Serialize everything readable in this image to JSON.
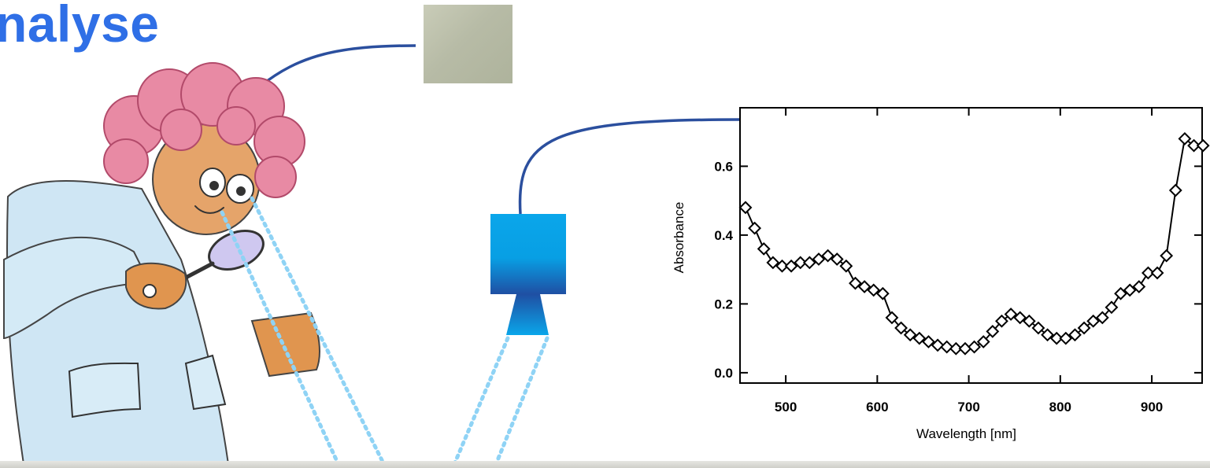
{
  "title": "nalyse",
  "colors": {
    "title": "#2f6fe6",
    "connector": "#2b4f9e",
    "camera_body_top": "#0aa6ea",
    "camera_body_bottom": "#1f4fa3",
    "beam": "#8fd3f5"
  },
  "icons": {
    "scientist": "scientist-with-magnifier-illustration",
    "camera": "spectral-camera-icon"
  },
  "chart_data": {
    "type": "line",
    "xlabel": "Wavelength [nm]",
    "ylabel": "Absorbance",
    "xlim": [
      450,
      955
    ],
    "ylim": [
      -0.03,
      0.77
    ],
    "x_ticks": [
      500,
      600,
      700,
      800,
      900
    ],
    "x_tick_labels": [
      "500",
      "600",
      "700",
      "800",
      "900"
    ],
    "y_ticks": [
      0.0,
      0.2,
      0.4,
      0.6
    ],
    "y_tick_labels": [
      "0.0",
      "0.2",
      "0.4",
      "0.6"
    ],
    "marker": "diamond",
    "grid": false,
    "x": [
      456,
      466,
      476,
      486,
      496,
      506,
      516,
      526,
      536,
      546,
      556,
      566,
      576,
      586,
      596,
      606,
      616,
      626,
      636,
      646,
      656,
      666,
      676,
      686,
      696,
      706,
      716,
      726,
      736,
      746,
      756,
      766,
      776,
      786,
      796,
      806,
      816,
      826,
      836,
      846,
      856,
      866,
      876,
      886,
      896,
      906,
      916,
      926,
      936,
      946,
      956
    ],
    "y": [
      0.48,
      0.42,
      0.36,
      0.32,
      0.31,
      0.31,
      0.32,
      0.32,
      0.33,
      0.34,
      0.33,
      0.31,
      0.26,
      0.25,
      0.24,
      0.23,
      0.16,
      0.13,
      0.11,
      0.1,
      0.09,
      0.08,
      0.075,
      0.07,
      0.07,
      0.075,
      0.09,
      0.12,
      0.15,
      0.17,
      0.16,
      0.15,
      0.13,
      0.11,
      0.1,
      0.1,
      0.11,
      0.13,
      0.15,
      0.16,
      0.19,
      0.23,
      0.24,
      0.25,
      0.29,
      0.29,
      0.34,
      0.53,
      0.68,
      0.66,
      0.66
    ]
  }
}
